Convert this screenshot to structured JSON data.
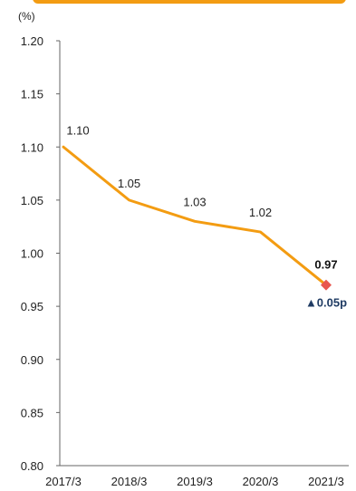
{
  "chart_data": {
    "type": "line",
    "unit_label": "(%)",
    "title": "",
    "xlabel": "",
    "ylabel": "",
    "categories": [
      "2017/3",
      "2018/3",
      "2019/3",
      "2020/3",
      "2021/3"
    ],
    "series": [
      {
        "values": [
          1.1,
          1.05,
          1.03,
          1.02,
          0.97
        ],
        "color": "#f39c12"
      }
    ],
    "data_labels": [
      "1.10",
      "1.05",
      "1.03",
      "1.02",
      "0.97"
    ],
    "ylim": [
      0.8,
      1.2
    ],
    "yticks": [
      0.8,
      0.85,
      0.9,
      0.95,
      1.0,
      1.05,
      1.1,
      1.15,
      1.2
    ],
    "ytick_labels": [
      "0.80",
      "0.85",
      "0.90",
      "0.95",
      "1.00",
      "1.05",
      "1.10",
      "1.15",
      "1.20"
    ],
    "grid": false,
    "last_point_marker_color": "#e8574f",
    "change_annotation": "▲0.05p",
    "header_bar_color": "#f39c12"
  }
}
